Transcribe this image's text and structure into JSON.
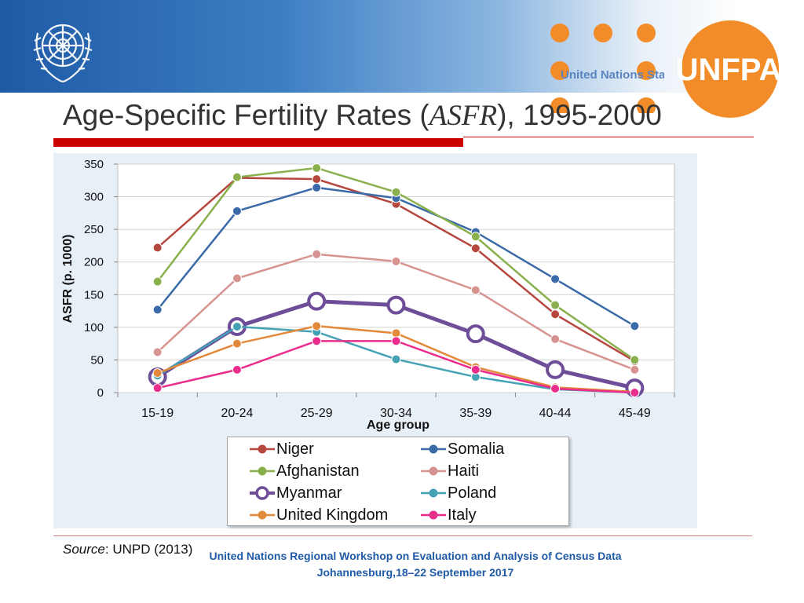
{
  "header": {
    "title_prefix": "Age-Specific Fertility Rates (",
    "title_italic": "ASFR",
    "title_suffix": "), 1995-2000",
    "unfpa_logo_text": "UNFPA",
    "partner_text": "United Nations Sta"
  },
  "chart_data": {
    "type": "line",
    "title": "",
    "xlabel": "Age group",
    "ylabel": "ASFR (p. 1000)",
    "ylim": [
      0,
      350
    ],
    "yticks": [
      0,
      50,
      100,
      150,
      200,
      250,
      300,
      350
    ],
    "grid": true,
    "categories": [
      "15-19",
      "20-24",
      "25-29",
      "30-34",
      "35-39",
      "40-44",
      "45-49"
    ],
    "series": [
      {
        "name": "Niger",
        "color": "#b5473f",
        "values": [
          222,
          329,
          327,
          289,
          221,
          120,
          48
        ]
      },
      {
        "name": "Somalia",
        "color": "#3a6aa8",
        "values": [
          127,
          278,
          314,
          298,
          246,
          174,
          102
        ]
      },
      {
        "name": "Afghanistan",
        "color": "#8ab04d",
        "values": [
          170,
          330,
          344,
          307,
          239,
          134,
          50
        ]
      },
      {
        "name": "Haiti",
        "color": "#d6938f",
        "values": [
          62,
          175,
          212,
          201,
          157,
          82,
          35
        ]
      },
      {
        "name": "Myanmar",
        "color": "#6e4d99",
        "values": [
          24,
          101,
          140,
          134,
          90,
          35,
          7
        ],
        "emphasis": true
      },
      {
        "name": "Poland",
        "color": "#45a2b5",
        "values": [
          26,
          101,
          93,
          51,
          24,
          5,
          0
        ]
      },
      {
        "name": "United Kingdom",
        "color": "#e38a3a",
        "values": [
          30,
          75,
          102,
          91,
          39,
          8,
          1
        ]
      },
      {
        "name": "Italy",
        "color": "#ea2d8d",
        "values": [
          7,
          35,
          79,
          79,
          35,
          6,
          0
        ]
      }
    ],
    "legend_position": "bottom-center"
  },
  "legend": {
    "col1": [
      "Niger",
      "Afghanistan",
      "Myanmar",
      "United Kingdom"
    ],
    "col2": [
      "Somalia",
      "Haiti",
      "Poland",
      "Italy"
    ]
  },
  "source": {
    "label": "Source",
    "text": ": UNPD (2013)"
  },
  "footer": {
    "line1": "United Nations Regional Workshop on Evaluation and Analysis of Census Data",
    "line2": "Johannesburg,18–22 September 2017"
  },
  "colors": {
    "accent_red": "#cc0000",
    "un_blue": "#1f5aa6",
    "unfpa_orange": "#f28c28"
  }
}
